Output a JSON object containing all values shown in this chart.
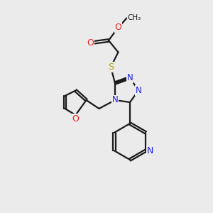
{
  "bg_color": "#ebebeb",
  "bond_color": "#1a1a1a",
  "N_color": "#2020ee",
  "O_color": "#ee2020",
  "S_color": "#b8a000",
  "line_width": 1.6,
  "figsize": [
    3.0,
    3.0
  ],
  "dpi": 100,
  "xlim": [
    0,
    10
  ],
  "ylim": [
    0,
    10
  ]
}
